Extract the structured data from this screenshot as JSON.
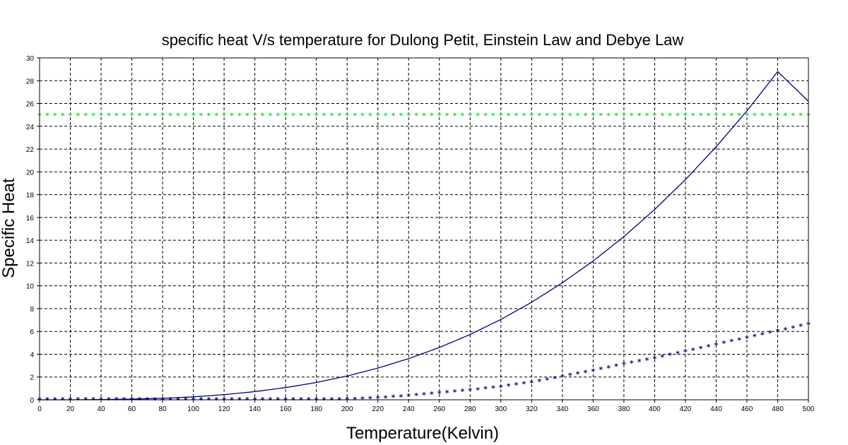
{
  "chart_data": {
    "type": "line",
    "title": "specific heat V/s temperature for Dulong Petit, Einstein Law and Debye Law",
    "xlabel": "Temperature(Kelvin)",
    "ylabel": "Specific Heat",
    "xlim": [
      0,
      500
    ],
    "ylim": [
      0,
      30
    ],
    "x_ticks": [
      0,
      20,
      40,
      60,
      80,
      100,
      120,
      140,
      160,
      180,
      200,
      220,
      240,
      260,
      280,
      300,
      320,
      340,
      360,
      380,
      400,
      420,
      440,
      460,
      480,
      500
    ],
    "y_ticks": [
      0,
      2,
      4,
      6,
      8,
      10,
      12,
      14,
      16,
      18,
      20,
      22,
      24,
      26,
      28,
      30
    ],
    "grid": true,
    "legend": "none",
    "series": [
      {
        "style": "asterisk-markers",
        "color": "#22dd22",
        "x": [
          0,
          500
        ],
        "y": [
          24.94,
          24.94
        ],
        "sampling_step": 5
      },
      {
        "style": "solid-line",
        "color": "#00008b",
        "x": [
          0,
          20,
          40,
          60,
          80,
          100,
          120,
          140,
          160,
          180,
          200,
          220,
          240,
          260,
          280,
          300,
          320,
          340,
          360,
          380,
          400,
          420,
          440,
          460,
          480,
          500
        ],
        "y": [
          0,
          0,
          0.02,
          0.06,
          0.13,
          0.26,
          0.45,
          0.72,
          1.07,
          1.52,
          2.09,
          2.78,
          3.61,
          4.59,
          5.73,
          7.05,
          8.56,
          10.27,
          12.18,
          14.32,
          16.7,
          19.32,
          22.2,
          25.35,
          28.8,
          26.2
        ]
      },
      {
        "style": "asterisk-markers",
        "color": "#00008b",
        "x": [
          0,
          20,
          40,
          60,
          80,
          100,
          120,
          140,
          160,
          180,
          200,
          220,
          240,
          260,
          280,
          300,
          320,
          340,
          360,
          380,
          400,
          420,
          440,
          460,
          480,
          500
        ],
        "y": [
          0,
          0,
          0,
          0,
          0,
          0,
          0,
          0,
          0,
          0,
          0.02,
          0.12,
          0.3,
          0.55,
          0.8,
          1.1,
          1.5,
          2.0,
          2.5,
          3.1,
          3.6,
          4.2,
          4.8,
          5.4,
          6.0,
          6.6
        ],
        "sampling_step": 5
      }
    ]
  }
}
